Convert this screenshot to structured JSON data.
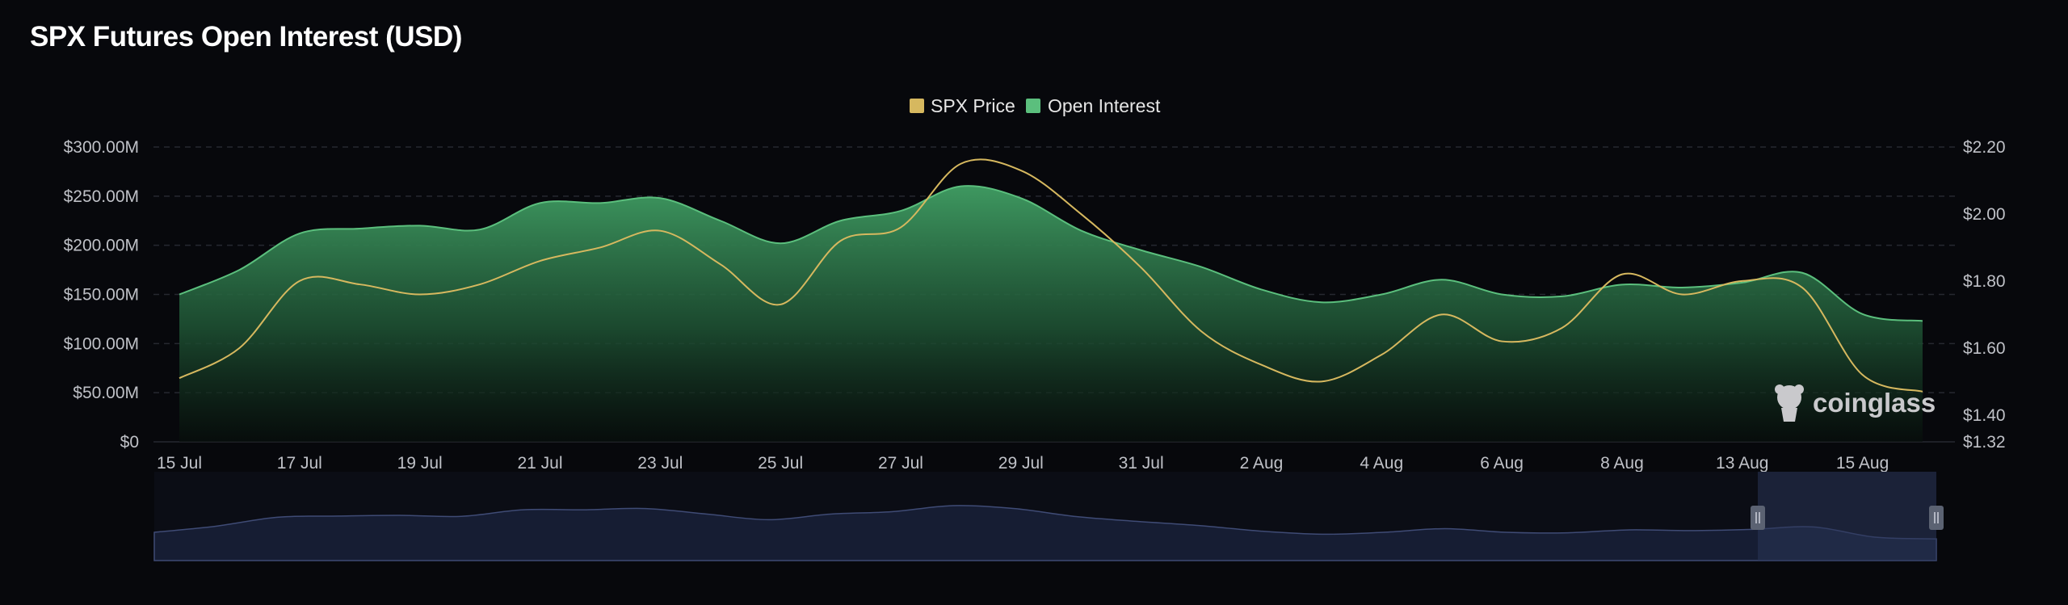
{
  "title": "SPX Futures Open Interest (USD)",
  "watermark": "coinglass",
  "colors": {
    "background": "#07080c",
    "spx_price": "#d6b85f",
    "open_interest": "#5bbf7d",
    "open_interest_fill_top": "#3f9a5f",
    "grid": "#2a2c33",
    "navigator_fill": "#1a2138",
    "navigator_line": "#46527c",
    "navigator_selection": "#2a3556"
  },
  "chart_data": {
    "type": "area",
    "title": "SPX Futures Open Interest (USD)",
    "legend_position": "top-center",
    "grid": true,
    "x_tick_labels": [
      "15 Jul",
      "17 Jul",
      "19 Jul",
      "21 Jul",
      "23 Jul",
      "25 Jul",
      "27 Jul",
      "29 Jul",
      "31 Jul",
      "2 Aug",
      "4 Aug",
      "6 Aug",
      "8 Aug",
      "13 Aug",
      "15 Aug"
    ],
    "y_left": {
      "unit": "USD",
      "range": [
        0,
        300000000
      ],
      "tick_labels": [
        "$0",
        "$50.00M",
        "$100.00M",
        "$150.00M",
        "$200.00M",
        "$250.00M",
        "$300.00M"
      ]
    },
    "y_right": {
      "unit": "USD",
      "range": [
        1.32,
        2.2
      ],
      "tick_labels": [
        "$1.32",
        "$1.40",
        "$1.60",
        "$1.80",
        "$2.00",
        "$2.20"
      ]
    },
    "x": [
      "15 Jul",
      "16 Jul",
      "17 Jul",
      "18 Jul",
      "19 Jul",
      "20 Jul",
      "21 Jul",
      "22 Jul",
      "23 Jul",
      "24 Jul",
      "25 Jul",
      "26 Jul",
      "27 Jul",
      "28 Jul",
      "29 Jul",
      "30 Jul",
      "31 Jul",
      "1 Aug",
      "2 Aug",
      "3 Aug",
      "4 Aug",
      "5 Aug",
      "6 Aug",
      "7 Aug",
      "8 Aug",
      "9 Aug",
      "13 Aug",
      "14 Aug",
      "15 Aug",
      "16 Aug"
    ],
    "series": [
      {
        "name": "Open Interest",
        "axis": "left",
        "type": "area",
        "values": [
          150000000,
          175000000,
          212000000,
          217000000,
          220000000,
          216000000,
          243000000,
          243000000,
          248000000,
          225000000,
          202000000,
          225000000,
          235000000,
          260000000,
          248000000,
          215000000,
          195000000,
          178000000,
          155000000,
          142000000,
          150000000,
          165000000,
          150000000,
          148000000,
          160000000,
          157000000,
          162000000,
          172000000,
          130000000,
          123000000
        ]
      },
      {
        "name": "SPX Price",
        "axis": "right",
        "type": "line",
        "values": [
          1.51,
          1.6,
          1.8,
          1.79,
          1.76,
          1.79,
          1.86,
          1.9,
          1.95,
          1.85,
          1.73,
          1.92,
          1.96,
          2.15,
          2.13,
          2.0,
          1.84,
          1.65,
          1.55,
          1.5,
          1.58,
          1.7,
          1.62,
          1.66,
          1.82,
          1.76,
          1.8,
          1.78,
          1.52,
          1.47
        ]
      }
    ]
  }
}
